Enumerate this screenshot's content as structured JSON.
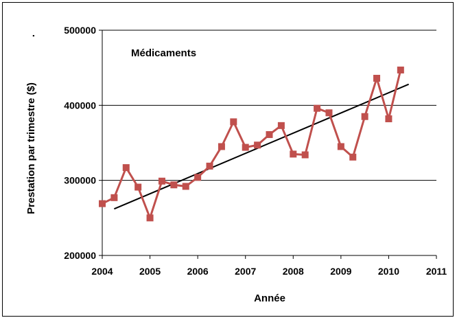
{
  "chart_data": {
    "type": "line",
    "title": "",
    "annotation": "Médicaments",
    "ylabel": "Prestation par trimestre ($)",
    "ylabel_suffix": ".",
    "xlabel": "Année",
    "xlim": [
      2004,
      2011
    ],
    "ylim": [
      200000,
      500000
    ],
    "x_ticks": [
      "2004",
      "2005",
      "2006",
      "2007",
      "2008",
      "2009",
      "2010",
      "2011"
    ],
    "y_ticks": [
      "200000",
      "300000",
      "400000",
      "500000"
    ],
    "grid": "horizontal",
    "legend": "none",
    "series": [
      {
        "color": "#c0504d",
        "marker": "square",
        "x": [
          2004.0,
          2004.25,
          2004.5,
          2004.75,
          2005.0,
          2005.25,
          2005.5,
          2005.75,
          2006.0,
          2006.25,
          2006.5,
          2006.75,
          2007.0,
          2007.25,
          2007.5,
          2007.75,
          2008.0,
          2008.25,
          2008.5,
          2008.75,
          2009.0,
          2009.25,
          2009.5,
          2009.75,
          2010.0,
          2010.25
        ],
        "values": [
          269000,
          277000,
          317000,
          291000,
          250000,
          299000,
          294000,
          292000,
          304000,
          319000,
          345000,
          378000,
          344000,
          347000,
          361000,
          373000,
          335000,
          334000,
          396000,
          390000,
          345000,
          331000,
          385000,
          436000,
          382000,
          447000
        ]
      }
    ],
    "trendline": {
      "color": "#000000",
      "x": [
        2004.25,
        2010.42
      ],
      "values": [
        262000,
        428000
      ]
    }
  }
}
